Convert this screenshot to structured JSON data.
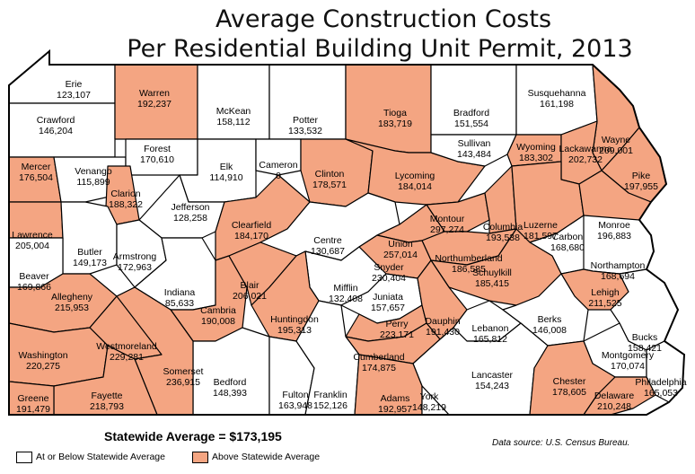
{
  "title_line1": "Average Construction Costs",
  "title_line2": "Per Residential Building Unit Permit, 2013",
  "statewide_average": "Statewide Average = $173,195",
  "legend": {
    "below": "At or Below Statewide Average",
    "above": "Above Statewide Average"
  },
  "source": "Data source: U.S. Census Bureau.",
  "colors": {
    "above": "#F4A582",
    "below": "#FFFFFF",
    "border": "#000000"
  },
  "counties": [
    {
      "name": "Erie",
      "value": "123,107",
      "above": false
    },
    {
      "name": "Crawford",
      "value": "146,204",
      "above": false
    },
    {
      "name": "Warren",
      "value": "192,237",
      "above": true
    },
    {
      "name": "McKean",
      "value": "158,112",
      "above": false
    },
    {
      "name": "Potter",
      "value": "133,532",
      "above": false
    },
    {
      "name": "Tioga",
      "value": "183,719",
      "above": true
    },
    {
      "name": "Bradford",
      "value": "151,554",
      "above": false
    },
    {
      "name": "Susquehanna",
      "value": "161,198",
      "above": false
    },
    {
      "name": "Wayne",
      "value": "209,001",
      "above": true
    },
    {
      "name": "Mercer",
      "value": "176,504",
      "above": true
    },
    {
      "name": "Venango",
      "value": "115,899",
      "above": false
    },
    {
      "name": "Forest",
      "value": "170,610",
      "above": false
    },
    {
      "name": "Elk",
      "value": "114,910",
      "above": false
    },
    {
      "name": "Cameron",
      "value": "0",
      "above": false
    },
    {
      "name": "Clinton",
      "value": "178,571",
      "above": true
    },
    {
      "name": "Lycoming",
      "value": "184,014",
      "above": true
    },
    {
      "name": "Sullivan",
      "value": "143,484",
      "above": false
    },
    {
      "name": "Wyoming",
      "value": "183,302",
      "above": true
    },
    {
      "name": "Lackawanna",
      "value": "202,732",
      "above": true
    },
    {
      "name": "Pike",
      "value": "197,955",
      "above": true
    },
    {
      "name": "Clarion",
      "value": "188,322",
      "above": true
    },
    {
      "name": "Jefferson",
      "value": "128,258",
      "above": false
    },
    {
      "name": "Clearfield",
      "value": "184,170",
      "above": true
    },
    {
      "name": "Centre",
      "value": "130,687",
      "above": false
    },
    {
      "name": "Montour",
      "value": "297,274",
      "above": true
    },
    {
      "name": "Columbia",
      "value": "193,538",
      "above": true
    },
    {
      "name": "Luzerne",
      "value": "181,597",
      "above": true
    },
    {
      "name": "Monroe",
      "value": "196,883",
      "above": true
    },
    {
      "name": "Lawrence",
      "value": "205,004",
      "above": true
    },
    {
      "name": "Butler",
      "value": "149,173",
      "above": false
    },
    {
      "name": "Armstrong",
      "value": "172,963",
      "above": false
    },
    {
      "name": "Union",
      "value": "257,014",
      "above": true
    },
    {
      "name": "Northumberland",
      "value": "186,585",
      "above": true
    },
    {
      "name": "Carbon",
      "value": "168,680",
      "above": false
    },
    {
      "name": "Snyder",
      "value": "230,404",
      "above": true
    },
    {
      "name": "Schuylkill",
      "value": "185,415",
      "above": true
    },
    {
      "name": "Northampton",
      "value": "168,694",
      "above": false
    },
    {
      "name": "Beaver",
      "value": "169,866",
      "above": false
    },
    {
      "name": "Indiana",
      "value": "85,633",
      "above": false
    },
    {
      "name": "Mifflin",
      "value": "132,408",
      "above": false
    },
    {
      "name": "Juniata",
      "value": "157,657",
      "above": false
    },
    {
      "name": "Lehigh",
      "value": "211,525",
      "above": true
    },
    {
      "name": "Allegheny",
      "value": "215,953",
      "above": true
    },
    {
      "name": "Cambria",
      "value": "190,008",
      "above": true
    },
    {
      "name": "Blair",
      "value": "206,021",
      "above": true
    },
    {
      "name": "Huntingdon",
      "value": "195,313",
      "above": true
    },
    {
      "name": "Perry",
      "value": "223,171",
      "above": true
    },
    {
      "name": "Dauphin",
      "value": "191,430",
      "above": true
    },
    {
      "name": "Lebanon",
      "value": "165,812",
      "above": false
    },
    {
      "name": "Berks",
      "value": "146,008",
      "above": false
    },
    {
      "name": "Bucks",
      "value": "158,421",
      "above": false
    },
    {
      "name": "Westmoreland",
      "value": "229,281",
      "above": true
    },
    {
      "name": "Washington",
      "value": "220,275",
      "above": true
    },
    {
      "name": "Montgomery",
      "value": "170,074",
      "above": false
    },
    {
      "name": "Cumberland",
      "value": "174,875",
      "above": true
    },
    {
      "name": "Philadelphia",
      "value": "165,053",
      "above": false
    },
    {
      "name": "Bedford",
      "value": "148,393",
      "above": false
    },
    {
      "name": "Fulton",
      "value": "163,948",
      "above": false
    },
    {
      "name": "Franklin",
      "value": "152,126",
      "above": false
    },
    {
      "name": "Lancaster",
      "value": "154,243",
      "above": false
    },
    {
      "name": "Chester",
      "value": "178,605",
      "above": true
    },
    {
      "name": "Delaware",
      "value": "210,248",
      "above": true
    },
    {
      "name": "Somerset",
      "value": "236,915",
      "above": true
    },
    {
      "name": "Fayette",
      "value": "218,793",
      "above": true
    },
    {
      "name": "Greene",
      "value": "191,479",
      "above": true
    },
    {
      "name": "Adams",
      "value": "192,957",
      "above": true
    },
    {
      "name": "York",
      "value": "148,219",
      "above": false
    }
  ]
}
